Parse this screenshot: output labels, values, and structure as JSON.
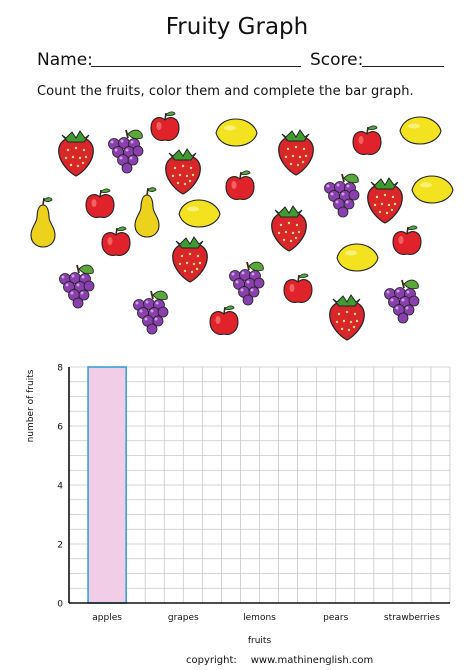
{
  "header": {
    "title": "Fruity Graph",
    "name_label": "Name:",
    "score_label": "Score:",
    "instruction": "Count the fruits, color them and complete the bar graph."
  },
  "fruits": {
    "apple_icon": "apple-icon",
    "grape_icon": "grape-icon",
    "lemon_icon": "lemon-icon",
    "pear_icon": "pear-icon",
    "strawberry_icon": "strawberry-icon"
  },
  "chart_data": {
    "type": "bar",
    "title": "",
    "categories": [
      "apples",
      "grapes",
      "lemons",
      "pears",
      "strawberries"
    ],
    "values": [
      8,
      null,
      null,
      null,
      null
    ],
    "xlabel": "fruits",
    "ylabel": "number of fruits",
    "ylim": [
      0,
      8
    ],
    "yticks": [
      0,
      2,
      4,
      6,
      8
    ],
    "grid": true,
    "colors": {
      "bar_fill": "#f2cde8",
      "bar_stroke": "#3aa0d8",
      "grid": "#c8c8c8",
      "axis": "#111111"
    }
  },
  "footer": {
    "copyright_label": "copyright:",
    "site": "www.mathinenglish.com"
  }
}
